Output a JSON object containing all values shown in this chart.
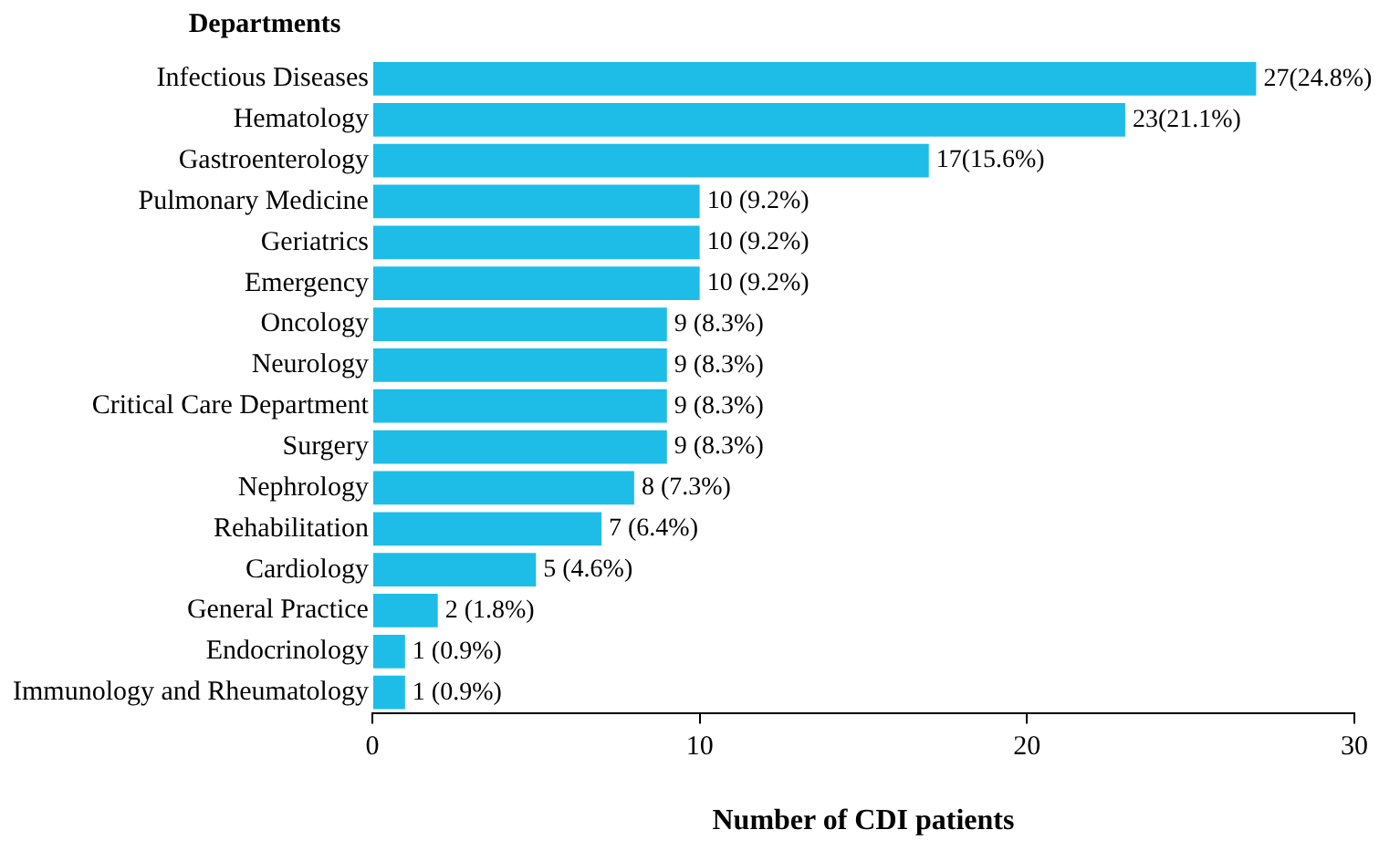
{
  "chart_data": {
    "type": "bar",
    "orientation": "horizontal",
    "ylabel": "Departments",
    "xlabel": "Number of CDI patients",
    "categories": [
      "Infectious Diseases",
      "Hematology",
      "Gastroenterology",
      "Pulmonary Medicine",
      "Geriatrics",
      "Emergency",
      "Oncology",
      "Neurology",
      "Critical Care Department",
      "Surgery",
      "Nephrology",
      "Rehabilitation",
      "Cardiology",
      "General Practice",
      "Endocrinology",
      "Immunology and Rheumatology"
    ],
    "values": [
      27,
      23,
      17,
      10,
      10,
      10,
      9,
      9,
      9,
      9,
      8,
      7,
      5,
      2,
      1,
      1
    ],
    "value_labels": [
      "27(24.8%)",
      "23(21.1%)",
      "17(15.6%)",
      "10 (9.2%)",
      "10 (9.2%)",
      "10 (9.2%)",
      "9 (8.3%)",
      "9 (8.3%)",
      "9 (8.3%)",
      "9 (8.3%)",
      "8 (7.3%)",
      "7 (6.4%)",
      "5 (4.6%)",
      "2 (1.8%)",
      "1 (0.9%)",
      "1 (0.9%)"
    ],
    "color": "#1ebde8",
    "xlim": [
      0,
      30
    ],
    "xticks": [
      0,
      10,
      20,
      30
    ],
    "grid": false,
    "legend": false
  }
}
